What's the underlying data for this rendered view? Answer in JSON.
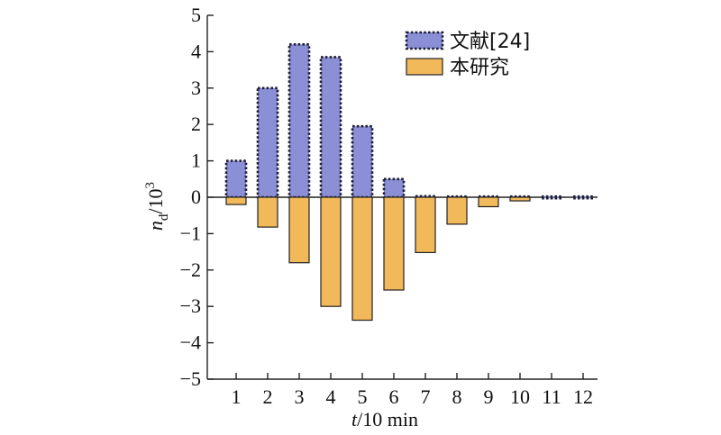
{
  "chart_data": {
    "type": "bar",
    "categories": [
      "1",
      "2",
      "3",
      "4",
      "5",
      "6",
      "7",
      "8",
      "9",
      "10",
      "11",
      "12"
    ],
    "series": [
      {
        "name": "文献[24]",
        "color": "#8a8fd6",
        "border": "dotted-dark",
        "values": [
          1.0,
          3.0,
          4.2,
          3.85,
          1.95,
          0.5,
          0.03,
          0.02,
          0.02,
          0.02,
          0.02,
          0.02
        ]
      },
      {
        "name": "本研究",
        "color": "#f2b95a",
        "border": "solid-dark",
        "values": [
          -0.2,
          -0.82,
          -1.8,
          -3.0,
          -3.38,
          -2.55,
          -1.52,
          -0.74,
          -0.26,
          -0.1,
          0.0,
          0.0
        ]
      }
    ],
    "ylim": [
      -5,
      5
    ],
    "yticks": [
      "−5",
      "−4",
      "−3",
      "−2",
      "−1",
      "0",
      "1",
      "2",
      "3",
      "4",
      "5"
    ],
    "ylabel": {
      "italic": "n",
      "sub": "d",
      "rest": "/10",
      "sup": "3"
    },
    "xlabel": {
      "italic": "t",
      "rest": "/10 min"
    },
    "legend_position": "top-right",
    "zero_line": true
  }
}
